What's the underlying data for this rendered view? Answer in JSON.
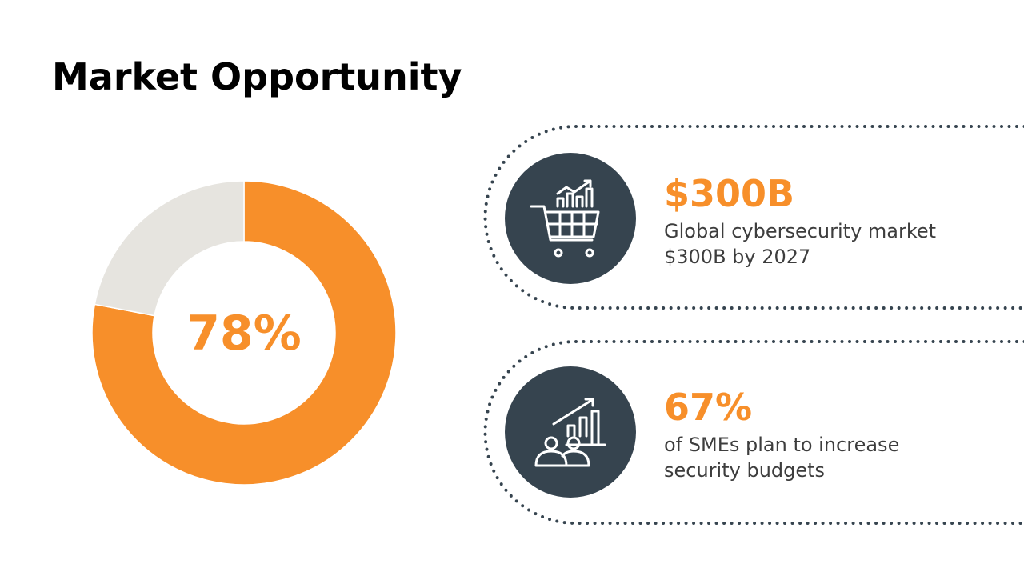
{
  "chart_data": {
    "type": "donut",
    "title": "Market Opportunity",
    "categories": [
      null,
      null
    ],
    "values": [
      78,
      22
    ],
    "value_labels": [
      "78%",
      null
    ],
    "colors": [
      "#f78f2a",
      "#e6e4df"
    ]
  },
  "stats": [
    {
      "value": "$300B",
      "lines": [
        "Global cybersecurity market",
        "$300B by 2027"
      ]
    },
    {
      "value": "67%",
      "lines": [
        "of SMEs plan to increase",
        "security budgets"
      ]
    }
  ]
}
